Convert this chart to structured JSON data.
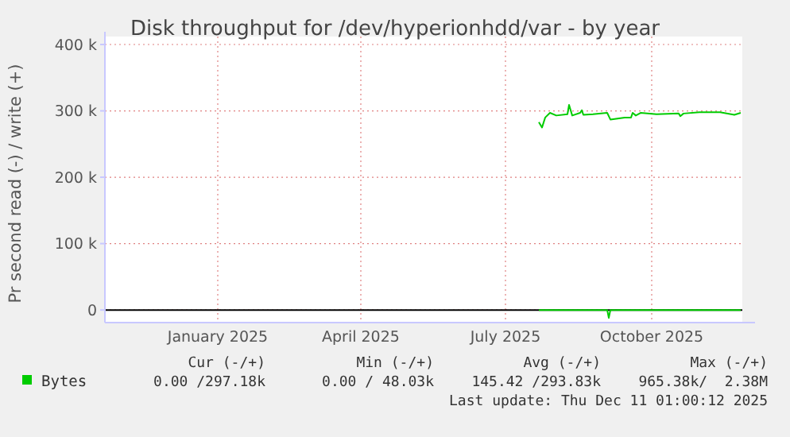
{
  "chart_data": {
    "type": "line",
    "title": "Disk throughput for /dev/hyperionhdd/var - by year",
    "ylabel": "Pr second read (-) / write (+)",
    "xlim": [
      "2024-11-05",
      "2025-12-11"
    ],
    "xticks": [
      {
        "value": "2025-01-15",
        "label": "January 2025"
      },
      {
        "value": "2025-04-15",
        "label": "April 2025"
      },
      {
        "value": "2025-07-15",
        "label": "July 2025"
      },
      {
        "value": "2025-10-15",
        "label": "October 2025"
      }
    ],
    "ylim": [
      -19000,
      400000
    ],
    "yticks": [
      0,
      {
        "value": 100000,
        "label": "100 k"
      },
      {
        "value": 200000,
        "label": "200 k"
      },
      {
        "value": 300000,
        "label": "300 k"
      },
      {
        "value": 400000,
        "label": "400 k"
      }
    ],
    "grid": true,
    "legend": "bottom left",
    "series": [
      {
        "color": "#00cc00",
        "x": [
          "2025-08-05",
          "2025-09-17",
          "2025-09-18",
          "2025-09-19",
          "2025-12-10"
        ],
        "values": [
          0,
          0,
          -12000,
          0,
          0
        ]
      },
      {
        "name": "Bytes",
        "color": "#00cc00",
        "x": [
          "2025-08-05",
          "2025-08-07",
          "2025-08-09",
          "2025-08-12",
          "2025-08-16",
          "2025-08-23",
          "2025-08-24",
          "2025-08-26",
          "2025-08-31",
          "2025-09-01",
          "2025-09-02",
          "2025-09-08",
          "2025-09-17",
          "2025-09-19",
          "2025-09-28",
          "2025-10-02",
          "2025-10-03",
          "2025-10-05",
          "2025-10-08",
          "2025-10-18",
          "2025-11-01",
          "2025-11-02",
          "2025-11-04",
          "2025-11-14",
          "2025-11-27",
          "2025-12-06",
          "2025-12-10"
        ],
        "values": [
          283000,
          275000,
          290000,
          297000,
          293000,
          295000,
          309000,
          293000,
          297000,
          301000,
          294000,
          295000,
          297000,
          287000,
          290000,
          290000,
          297000,
          293000,
          297000,
          295000,
          296000,
          292000,
          296000,
          298000,
          298000,
          294000,
          297000
        ]
      }
    ],
    "ref_lines": [
      {
        "axis": "y",
        "value": 0,
        "color": "#000000"
      }
    ],
    "annotations": [
      "Cur (-/+)",
      "Min (-/+)",
      "Avg (-/+)",
      "Max (-/+)",
      "0.00 /297.18k",
      "0.00 / 48.03k",
      "145.42 /293.83k",
      "965.38k/  2.38M",
      "Last update: Thu Dec 11 01:00:12 2025"
    ]
  }
}
